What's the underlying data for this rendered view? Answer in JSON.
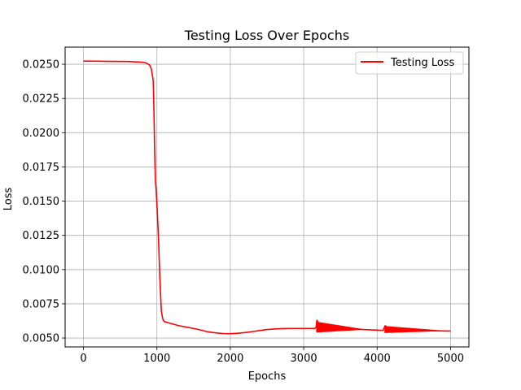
{
  "chart_data": {
    "type": "line",
    "title": "Testing Loss Over Epochs",
    "xlabel": "Epochs",
    "ylabel": "Loss",
    "xlim": [
      -250,
      5250
    ],
    "ylim": [
      0.00435,
      0.02625
    ],
    "x_ticks": [
      0,
      1000,
      2000,
      3000,
      4000,
      5000
    ],
    "x_tick_labels": [
      "0",
      "1000",
      "2000",
      "3000",
      "4000",
      "5000"
    ],
    "y_ticks": [
      0.005,
      0.0075,
      0.01,
      0.0125,
      0.015,
      0.0175,
      0.02,
      0.0225,
      0.025
    ],
    "y_tick_labels": [
      "0.0050",
      "0.0075",
      "0.0100",
      "0.0125",
      "0.0150",
      "0.0175",
      "0.0200",
      "0.0225",
      "0.0250"
    ],
    "grid": true,
    "legend_position": "upper right",
    "series": [
      {
        "name": "Testing Loss",
        "color": "#ff0000",
        "x": [
          0,
          200,
          400,
          600,
          800,
          850,
          900,
          925,
          950,
          960,
          970,
          980,
          990,
          1000,
          1020,
          1040,
          1060,
          1080,
          1100,
          1200,
          1300,
          1400,
          1500,
          1600,
          1700,
          1800,
          1900,
          2000,
          2100,
          2200,
          2300,
          2400,
          2500,
          2600,
          2700,
          2800,
          2900,
          3000,
          3100,
          3150,
          3170,
          3180,
          3200,
          3250,
          3300,
          3400,
          3500,
          3600,
          3700,
          3800,
          3900,
          4000,
          4050,
          4080,
          4100,
          4110,
          4130,
          4200,
          4300,
          4400,
          4500,
          4600,
          4700,
          4800,
          4900,
          5000
        ],
        "y": [
          0.02523,
          0.02522,
          0.02521,
          0.0252,
          0.02515,
          0.0251,
          0.02495,
          0.02465,
          0.0238,
          0.0215,
          0.0185,
          0.0165,
          0.0158,
          0.0148,
          0.0125,
          0.0095,
          0.007,
          0.0064,
          0.0062,
          0.00605,
          0.0059,
          0.0058,
          0.0057,
          0.00558,
          0.00545,
          0.00538,
          0.00533,
          0.00532,
          0.00535,
          0.0054,
          0.00547,
          0.00555,
          0.00562,
          0.00566,
          0.00569,
          0.0057,
          0.0057,
          0.0057,
          0.0057,
          0.0057,
          0.0058,
          0.0063,
          0.0061,
          0.00595,
          0.00588,
          0.00578,
          0.00572,
          0.00568,
          0.00565,
          0.00562,
          0.0056,
          0.00558,
          0.00556,
          0.00556,
          0.0058,
          0.0059,
          0.00582,
          0.00571,
          0.00563,
          0.00559,
          0.00557,
          0.00555,
          0.00554,
          0.00553,
          0.00552,
          0.00551
        ]
      }
    ]
  }
}
